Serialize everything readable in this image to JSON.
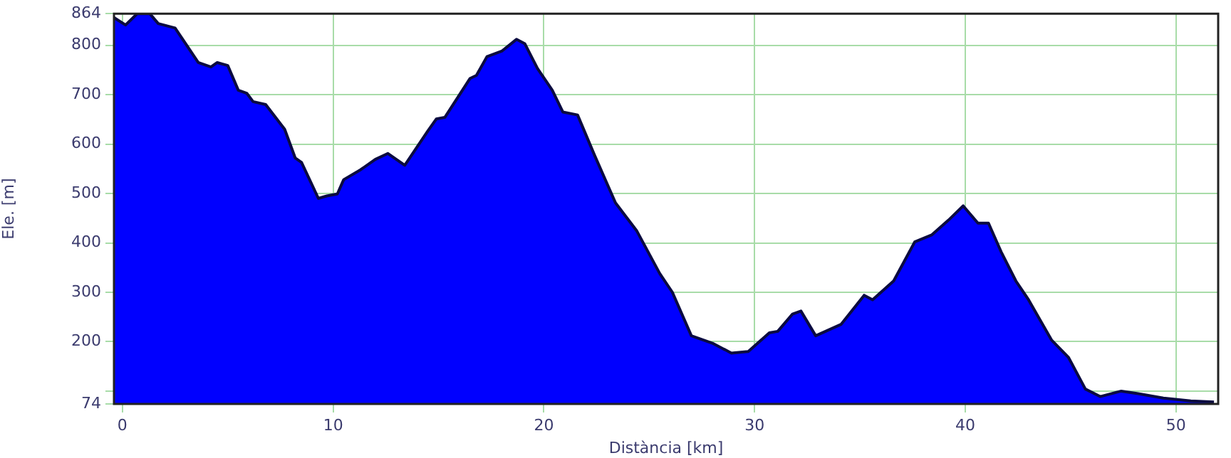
{
  "chart_data": {
    "type": "area",
    "xlabel": "Distància [km]",
    "ylabel": "Ele. [m]",
    "x": [
      -0.4,
      0.15,
      0.7,
      1.3,
      1.7,
      2.5,
      3.6,
      4.2,
      4.5,
      5.0,
      5.5,
      5.9,
      6.2,
      6.8,
      7.7,
      8.2,
      8.5,
      9.3,
      9.7,
      10.2,
      10.5,
      11.3,
      12.0,
      12.6,
      13.4,
      14.5,
      14.9,
      15.3,
      16.5,
      16.8,
      17.3,
      18.0,
      18.7,
      19.1,
      19.7,
      20.4,
      20.9,
      21.6,
      22.4,
      23.4,
      24.4,
      25.5,
      26.1,
      27.0,
      28.0,
      28.9,
      29.7,
      30.7,
      31.1,
      31.8,
      32.2,
      32.9,
      34.1,
      35.2,
      35.6,
      36.6,
      37.6,
      38.4,
      39.2,
      39.9,
      40.6,
      41.1,
      41.7,
      42.4,
      43.0,
      44.1,
      44.9,
      45.7,
      46.4,
      47.4,
      48.2,
      49.4,
      50.7,
      51.8
    ],
    "values": [
      856,
      841,
      864,
      864,
      844,
      835,
      765,
      756,
      765,
      759,
      709,
      703,
      686,
      680,
      630,
      572,
      563,
      490,
      495,
      499,
      528,
      548,
      569,
      581,
      557,
      627,
      651,
      654,
      733,
      739,
      777,
      788,
      812,
      803,
      753,
      709,
      665,
      659,
      578,
      481,
      425,
      338,
      300,
      212,
      197,
      177,
      180,
      218,
      221,
      256,
      262,
      212,
      235,
      294,
      285,
      323,
      402,
      416,
      446,
      475,
      440,
      440,
      382,
      323,
      285,
      203,
      168,
      104,
      89,
      100,
      95,
      86,
      80,
      78
    ],
    "color": "#0000ff",
    "xlim": [
      -0.4,
      52
    ],
    "ylim": [
      74,
      864
    ],
    "xticks": [
      0,
      10,
      20,
      30,
      40,
      50
    ],
    "yticks": [
      74,
      {
        "value": 100,
        "label": null
      },
      200,
      300,
      400,
      500,
      600,
      700,
      800,
      864
    ],
    "grid": true
  }
}
